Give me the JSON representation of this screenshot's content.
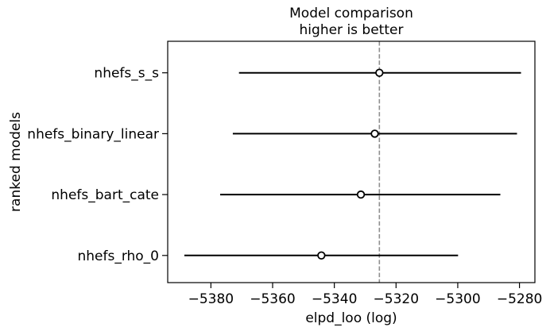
{
  "chart_data": {
    "type": "scatter",
    "variant": "model-comparison-forest-errorbar",
    "title": "Model comparison",
    "subtitle": "higher is better",
    "xlabel": "elpd_loo (log)",
    "ylabel": "ranked models",
    "xlim": [
      -5394,
      -5275
    ],
    "xticks": [
      -5380,
      -5360,
      -5340,
      -5320,
      -5300,
      -5280
    ],
    "xtick_labels": [
      "−5380",
      "−5360",
      "−5340",
      "−5320",
      "−5300",
      "−5280"
    ],
    "categories": [
      "nhefs_s_s",
      "nhefs_binary_linear",
      "nhefs_bart_cate",
      "nhefs_rho_0"
    ],
    "series": [
      {
        "name": "elpd_loo",
        "values": [
          -5325.4,
          -5326.9,
          -5331.4,
          -5344.2
        ]
      },
      {
        "name": "interval_lower",
        "values": [
          -5370.9,
          -5372.9,
          -5377.0,
          -5388.6
        ]
      },
      {
        "name": "interval_upper",
        "values": [
          -5279.5,
          -5280.8,
          -5286.2,
          -5299.9
        ]
      }
    ],
    "vline": {
      "x": -5325.4,
      "style": "dashed"
    },
    "marker": "open-circle",
    "grid": false,
    "legend": false
  },
  "colors": {
    "background": "#ffffff",
    "axis": "#000000",
    "text": "#000000",
    "error_bar": "#000000",
    "point_fill": "#ffffff",
    "point_stroke": "#000000",
    "dashed_line": "#8f8f8f"
  }
}
